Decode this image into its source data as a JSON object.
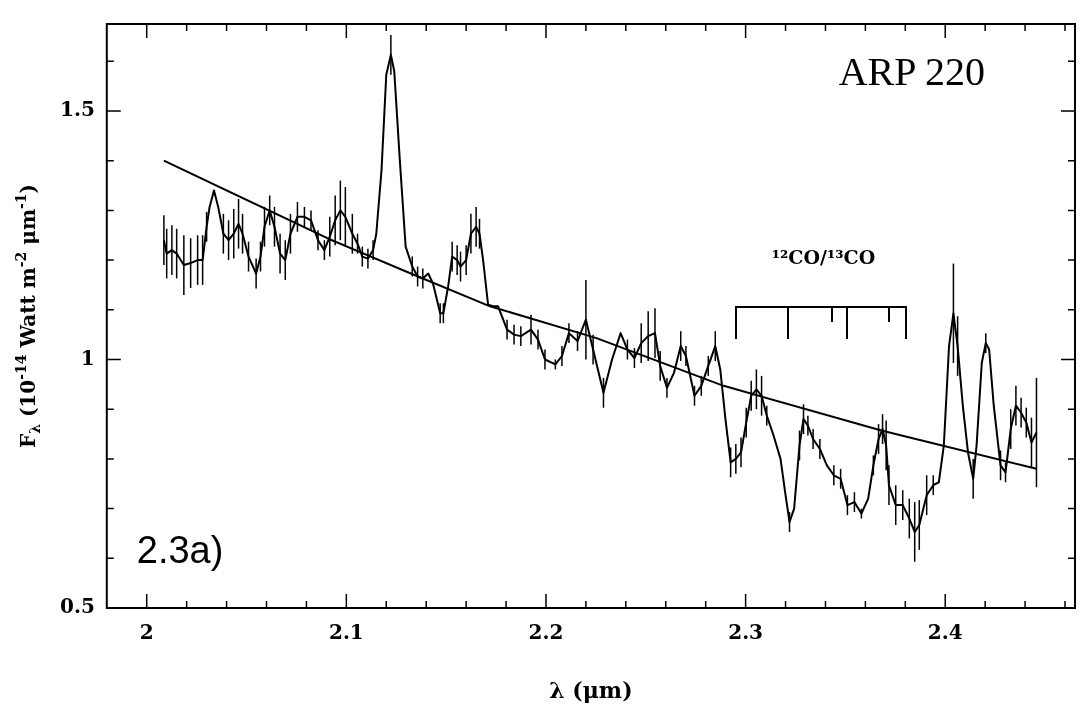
{
  "chart_data": {
    "type": "line",
    "title": "ARP 220",
    "xlabel": "λ (μm)",
    "ylabel": "F$_{λ}$ (10$^{-14}$ Watt m$^{-2}$ μm$^{-1}$)",
    "xlim": [
      1.98,
      2.465
    ],
    "xticks": [
      2,
      {
        "value": 2.02,
        "label": null
      },
      {
        "value": 2.04,
        "label": null
      },
      {
        "value": 2.06,
        "label": null
      },
      {
        "value": 2.08,
        "label": null
      },
      2.1,
      {
        "value": 2.12,
        "label": null
      },
      {
        "value": 2.14,
        "label": null
      },
      {
        "value": 2.16,
        "label": null
      },
      {
        "value": 2.18,
        "label": null
      },
      2.2,
      {
        "value": 2.22,
        "label": null
      },
      {
        "value": 2.24,
        "label": null
      },
      {
        "value": 2.26,
        "label": null
      },
      {
        "value": 2.28,
        "label": null
      },
      2.3,
      {
        "value": 2.32,
        "label": null
      },
      {
        "value": 2.34,
        "label": null
      },
      {
        "value": 2.36,
        "label": null
      },
      {
        "value": 2.38,
        "label": null
      },
      2.4,
      {
        "value": 2.42,
        "label": null
      },
      {
        "value": 2.44,
        "label": null
      },
      {
        "value": 2.46,
        "label": null
      }
    ],
    "ylim": [
      0.5,
      1.675
    ],
    "yticks": [
      0.5,
      {
        "value": 0.6,
        "label": null
      },
      {
        "value": 0.7,
        "label": null
      },
      {
        "value": 0.8,
        "label": null
      },
      {
        "value": 0.9,
        "label": null
      },
      1,
      {
        "value": 1.1,
        "label": null
      },
      {
        "value": 1.2,
        "label": null
      },
      {
        "value": 1.3,
        "label": null
      },
      {
        "value": 1.4,
        "label": null
      },
      1.5,
      {
        "value": 1.6,
        "label": null
      }
    ],
    "grid": false,
    "legend": false,
    "line_style": "solid",
    "annotations": [
      "2.3a)",
      "¹²CO/¹³CO"
    ],
    "series": [
      {
        "color": "#000000",
        "x": [
          2.0086,
          2.01,
          2.0126,
          2.015,
          2.0186,
          2.022,
          2.0255,
          2.028,
          2.03,
          2.0315,
          2.0337,
          2.0358,
          2.0384,
          2.041,
          2.0436,
          2.046,
          2.048,
          2.051,
          2.0548,
          2.057,
          2.059,
          2.0616,
          2.064,
          2.0668,
          2.0694,
          2.072,
          2.0755,
          2.079,
          2.0823,
          2.0858,
          2.089,
          2.0917,
          2.0944,
          2.097,
          2.0995,
          2.103,
          2.1056,
          2.108,
          2.1108,
          2.1134,
          2.115,
          2.1176,
          2.12,
          2.1223,
          2.124,
          2.1268,
          2.1297,
          2.133,
          2.1357,
          2.1383,
          2.141,
          2.1434,
          2.147,
          2.1486,
          2.151,
          2.153,
          2.1555,
          2.1572,
          2.16,
          2.1624,
          2.165,
          2.1667,
          2.1685,
          2.171,
          2.1736,
          2.176,
          2.1805,
          2.184,
          2.1874,
          2.1925,
          2.196,
          2.1995,
          2.2047,
          2.208,
          2.2115,
          2.2158,
          2.22,
          2.2236,
          2.2288,
          2.2331,
          2.2374,
          2.2408,
          2.2443,
          2.2477,
          2.2512,
          2.2546,
          2.2572,
          2.2606,
          2.2641,
          2.2675,
          2.2701,
          2.2744,
          2.2778,
          2.2813,
          2.2848,
          2.2873,
          2.2899,
          2.2925,
          2.2951,
          2.2977,
          2.3003,
          2.3028,
          2.3054,
          2.308,
          2.3106,
          2.314,
          2.3175,
          2.32,
          2.322,
          2.3243,
          2.327,
          2.329,
          2.3312,
          2.3338,
          2.3372,
          2.3407,
          2.3442,
          2.3476,
          2.351,
          2.3545,
          2.358,
          2.3614,
          2.364,
          2.3666,
          2.3686,
          2.3704,
          2.3718,
          2.3752,
          2.3787,
          2.382,
          2.3847,
          2.387,
          2.3907,
          2.394,
          2.3968,
          2.3993,
          2.4019,
          2.4041,
          2.4062,
          2.4088,
          2.4114,
          2.414,
          2.4157,
          2.4183,
          2.4203,
          2.422,
          2.4243,
          2.4277,
          2.4302,
          2.4328,
          2.4354,
          2.438,
          2.4406,
          2.4432,
          2.4457
        ],
        "values": [
          1.24,
          1.213,
          1.22,
          1.213,
          1.19,
          1.194,
          1.2,
          1.2,
          1.267,
          1.307,
          1.34,
          1.307,
          1.253,
          1.24,
          1.253,
          1.273,
          1.253,
          1.207,
          1.173,
          1.207,
          1.267,
          1.3,
          1.267,
          1.213,
          1.2,
          1.253,
          1.287,
          1.287,
          1.28,
          1.24,
          1.22,
          1.247,
          1.28,
          1.3,
          1.287,
          1.253,
          1.233,
          1.207,
          1.203,
          1.22,
          1.253,
          1.38,
          1.573,
          1.613,
          1.58,
          1.4,
          1.227,
          1.187,
          1.167,
          1.163,
          1.173,
          1.153,
          1.093,
          1.093,
          1.147,
          1.207,
          1.2,
          1.187,
          1.2,
          1.253,
          1.267,
          1.253,
          1.2,
          1.11,
          1.107,
          1.107,
          1.06,
          1.05,
          1.047,
          1.06,
          1.04,
          1.0,
          0.99,
          1.007,
          1.053,
          1.037,
          1.08,
          1.02,
          0.933,
          1.0,
          1.053,
          1.02,
          1.003,
          1.033,
          1.047,
          1.053,
          0.987,
          0.943,
          0.973,
          1.027,
          1.007,
          0.927,
          0.947,
          0.987,
          1.027,
          0.98,
          0.88,
          0.793,
          0.8,
          0.813,
          0.873,
          0.927,
          0.94,
          0.927,
          0.887,
          0.847,
          0.8,
          0.727,
          0.673,
          0.7,
          0.827,
          0.88,
          0.867,
          0.84,
          0.82,
          0.787,
          0.767,
          0.76,
          0.707,
          0.713,
          0.69,
          0.72,
          0.787,
          0.84,
          0.86,
          0.827,
          0.747,
          0.707,
          0.707,
          0.68,
          0.653,
          0.667,
          0.727,
          0.747,
          0.753,
          0.827,
          1.027,
          1.093,
          1.027,
          0.907,
          0.813,
          0.76,
          0.827,
          0.993,
          1.033,
          1.02,
          0.907,
          0.787,
          0.773,
          0.86,
          0.907,
          0.893,
          0.873,
          0.833,
          0.853
        ],
        "errors": [
          0.05,
          0.05,
          0.05,
          0.05,
          0.06,
          0.05,
          0.05,
          0.05,
          0.03,
          null,
          null,
          null,
          0.04,
          0.04,
          0.05,
          0.05,
          0.04,
          0.03,
          0.03,
          0.03,
          0.04,
          0.03,
          0.04,
          0.04,
          0.04,
          0.04,
          0.03,
          0.02,
          0.02,
          0.02,
          0.02,
          0.04,
          0.05,
          0.06,
          0.06,
          0.04,
          0.02,
          0.02,
          0.02,
          0.02,
          null,
          null,
          null,
          0.04,
          null,
          null,
          null,
          0.02,
          0.02,
          0.02,
          null,
          null,
          0.02,
          0.02,
          null,
          0.03,
          0.03,
          0.03,
          0.03,
          0.04,
          0.04,
          0.03,
          null,
          null,
          null,
          null,
          0.02,
          0.02,
          0.02,
          0.03,
          0.02,
          0.02,
          0.01,
          0.02,
          0.02,
          0.02,
          0.08,
          0.03,
          0.03,
          null,
          null,
          0.02,
          0.02,
          0.04,
          0.05,
          0.05,
          0.03,
          0.02,
          null,
          0.03,
          0.02,
          0.02,
          0.02,
          0.02,
          0.03,
          null,
          null,
          0.03,
          0.03,
          0.03,
          0.03,
          0.03,
          0.04,
          0.04,
          0.02,
          null,
          null,
          null,
          0.02,
          null,
          0.03,
          0.03,
          0.02,
          0.02,
          0.02,
          null,
          0.02,
          0.02,
          0.02,
          0.02,
          0.01,
          null,
          0.02,
          0.03,
          0.03,
          0.05,
          0.04,
          0.04,
          0.03,
          0.04,
          0.06,
          0.05,
          0.04,
          0.02,
          null,
          null,
          null,
          0.1,
          0.06,
          null,
          null,
          0.04,
          null,
          null,
          0.02,
          null,
          null,
          0.03,
          0.02,
          0.04,
          0.04,
          0.03,
          0.03,
          0.05,
          0.11
        ]
      },
      {
        "color": "#000000",
        "x": [
          2.0086,
          2.091,
          2.1323,
          2.172,
          2.2253,
          2.289,
          2.368,
          2.4457
        ],
        "values": [
          1.4,
          1.243,
          1.173,
          1.107,
          1.043,
          0.947,
          0.857,
          0.78
        ]
      }
    ]
  }
}
